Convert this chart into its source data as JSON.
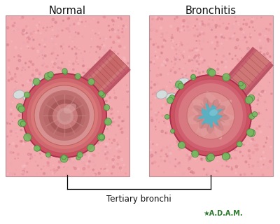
{
  "title_normal": "Normal",
  "title_bronchitis": "Bronchitis",
  "label_tertiary": "Tertiary bronchi",
  "fig_width": 4.0,
  "fig_height": 3.2,
  "dpi": 100,
  "bg_white": "#ffffff",
  "bg_pink": "#f0a8b0",
  "panel_edge": "#c8a0a8",
  "title_fontsize": 10.5,
  "label_fontsize": 8.5,
  "adam_fontsize": 7,
  "adam_color": "#2d7a2d"
}
